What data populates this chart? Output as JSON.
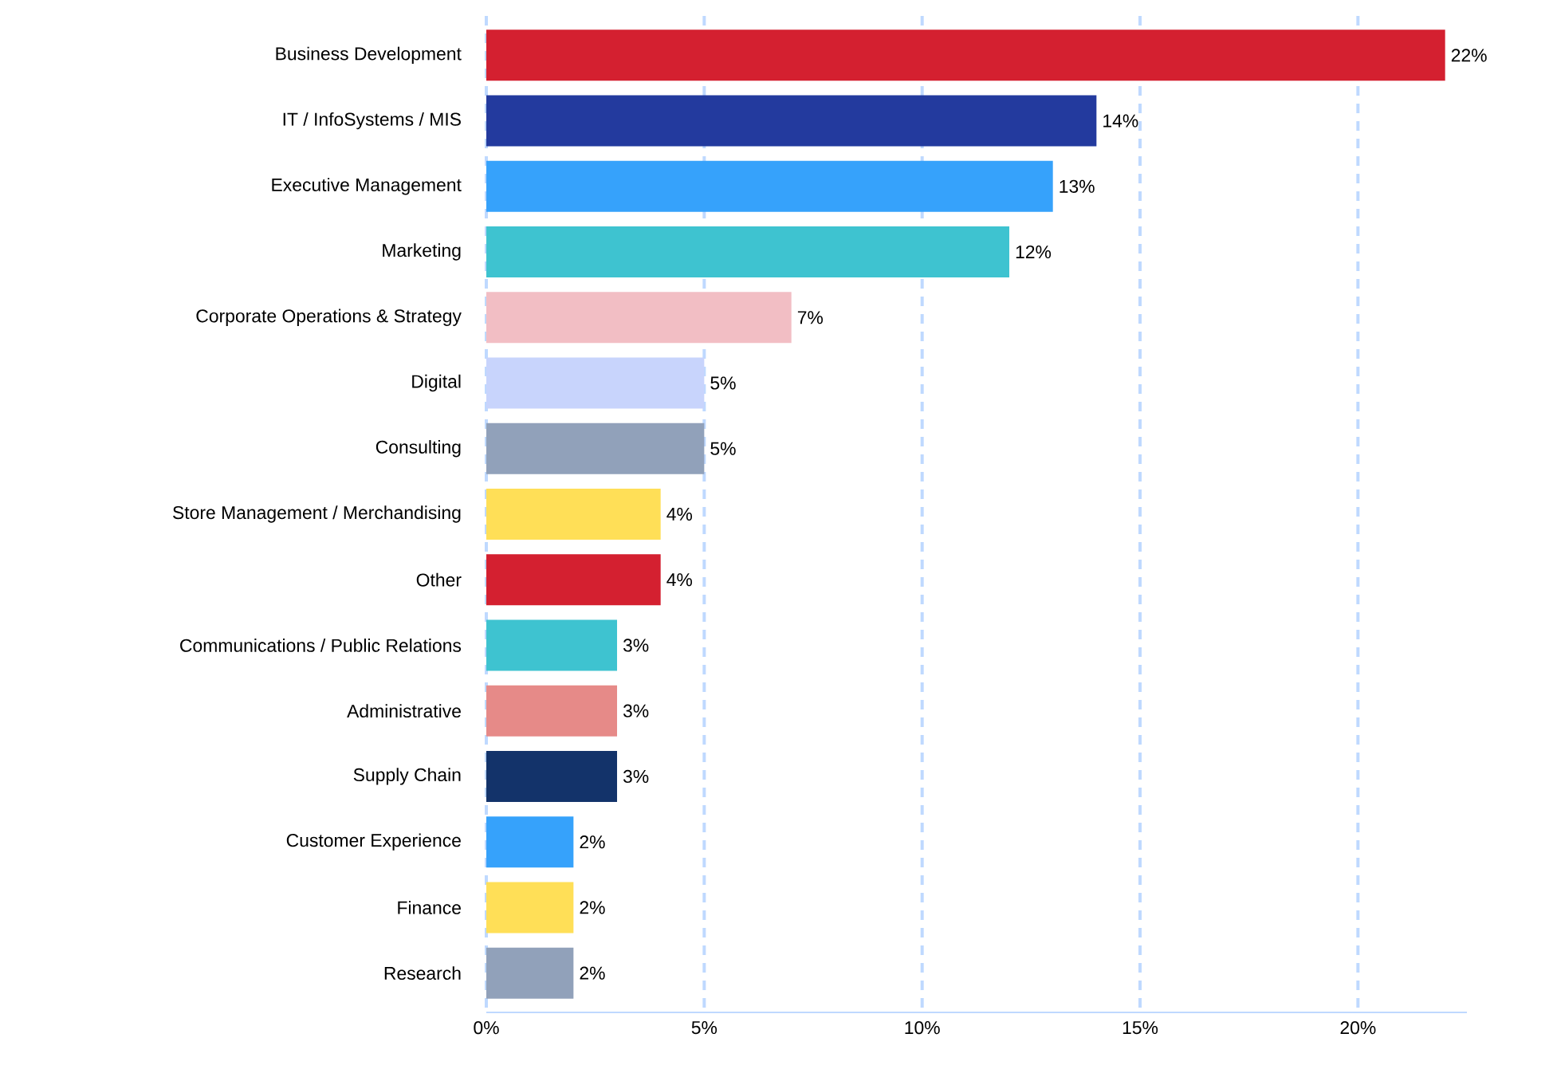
{
  "chart_data": {
    "type": "bar",
    "orientation": "horizontal",
    "categories": [
      "Business Development",
      "IT / InfoSystems / MIS",
      "Executive Management",
      "Marketing",
      "Corporate Operations & Strategy",
      "Digital",
      "Consulting",
      "Store Management / Merchandising",
      "Other",
      "Communications / Public Relations",
      "Administrative",
      "Supply Chain",
      "Customer Experience",
      "Finance",
      "Research"
    ],
    "values": [
      22,
      14,
      13,
      12,
      7,
      5,
      5,
      4,
      4,
      3,
      3,
      3,
      2,
      2,
      2
    ],
    "value_labels": [
      "22%",
      "14%",
      "13%",
      "12%",
      "7%",
      "5%",
      "5%",
      "4%",
      "4%",
      "3%",
      "3%",
      "3%",
      "2%",
      "2%",
      "2%"
    ],
    "colors": [
      "#d42030",
      "#233a9e",
      "#36a2fb",
      "#3ec3d0",
      "#f2bec4",
      "#c8d4fc",
      "#91a1ba",
      "#ffdf57",
      "#d42030",
      "#3ec3d0",
      "#e68a88",
      "#13336a",
      "#36a2fb",
      "#ffdf57",
      "#91a1ba"
    ],
    "xlim": [
      0,
      22.5
    ],
    "xticks": [
      {
        "value": 0,
        "label": "0%"
      },
      {
        "value": 5,
        "label": "5%"
      },
      {
        "value": 10,
        "label": "10%"
      },
      {
        "value": 15,
        "label": "15%"
      },
      {
        "value": 20,
        "label": "20%"
      }
    ],
    "grid": "x"
  }
}
